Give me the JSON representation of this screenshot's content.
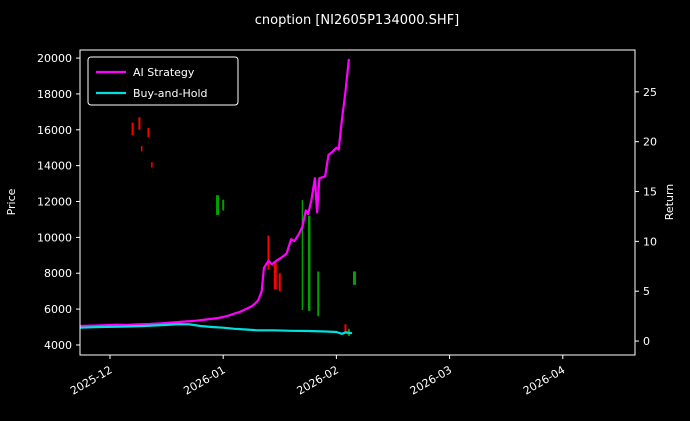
{
  "chart_data": {
    "type": "line",
    "title": "cnoption [NI2605P134000.SHF]",
    "ylabel_left": "Price",
    "ylabel_right": "Return",
    "x_tick_labels": [
      "2025-12",
      "2026-01",
      "2026-02",
      "2026-03",
      "2026-04"
    ],
    "x_tick_positions": [
      0,
      1,
      2,
      3,
      4
    ],
    "xlim": [
      -0.265,
      4.638
    ],
    "ylim_left": [
      3440,
      20450
    ],
    "ylim_right": [
      -1.4,
      29.2
    ],
    "y_ticks_left": [
      4000,
      6000,
      8000,
      10000,
      12000,
      14000,
      16000,
      18000,
      20000
    ],
    "y_ticks_right": [
      0,
      5,
      10,
      15,
      20,
      25
    ],
    "colors": {
      "background": "#000000",
      "foreground": "#ffffff",
      "ai_strategy": "#ff00ff",
      "buy_and_hold": "#00e0e0",
      "candle_up": "#00a000",
      "candle_down": "#ff0000"
    },
    "series": [
      {
        "name": "AI Strategy",
        "color": "#ff00ff",
        "width": 2.2,
        "points": [
          [
            -0.26,
            5060
          ],
          [
            -0.15,
            5080
          ],
          [
            -0.05,
            5100
          ],
          [
            0.05,
            5130
          ],
          [
            0.15,
            5120
          ],
          [
            0.25,
            5150
          ],
          [
            0.35,
            5170
          ],
          [
            0.45,
            5200
          ],
          [
            0.55,
            5250
          ],
          [
            0.65,
            5300
          ],
          [
            0.75,
            5350
          ],
          [
            0.85,
            5420
          ],
          [
            0.95,
            5500
          ],
          [
            1.0,
            5560
          ],
          [
            1.05,
            5650
          ],
          [
            1.1,
            5750
          ],
          [
            1.15,
            5850
          ],
          [
            1.2,
            6000
          ],
          [
            1.25,
            6150
          ],
          [
            1.28,
            6300
          ],
          [
            1.31,
            6500
          ],
          [
            1.34,
            7000
          ],
          [
            1.36,
            8300
          ],
          [
            1.4,
            8700
          ],
          [
            1.43,
            8500
          ],
          [
            1.47,
            8700
          ],
          [
            1.52,
            8900
          ],
          [
            1.56,
            9100
          ],
          [
            1.6,
            9900
          ],
          [
            1.63,
            9800
          ],
          [
            1.67,
            10200
          ],
          [
            1.7,
            10600
          ],
          [
            1.73,
            11500
          ],
          [
            1.75,
            11300
          ],
          [
            1.78,
            12100
          ],
          [
            1.81,
            13300
          ],
          [
            1.83,
            11400
          ],
          [
            1.85,
            13300
          ],
          [
            1.9,
            13400
          ],
          [
            1.93,
            14600
          ],
          [
            1.97,
            14800
          ],
          [
            2.0,
            15000
          ],
          [
            2.02,
            14900
          ],
          [
            2.05,
            16600
          ],
          [
            2.08,
            18100
          ],
          [
            2.11,
            19900
          ]
        ]
      },
      {
        "name": "Buy-and-Hold",
        "color": "#00e0e0",
        "width": 2.2,
        "points": [
          [
            -0.26,
            4960
          ],
          [
            -0.1,
            5000
          ],
          [
            0.1,
            5020
          ],
          [
            0.3,
            5060
          ],
          [
            0.5,
            5120
          ],
          [
            0.6,
            5160
          ],
          [
            0.7,
            5150
          ],
          [
            0.8,
            5060
          ],
          [
            0.9,
            5000
          ],
          [
            1.0,
            4960
          ],
          [
            1.1,
            4900
          ],
          [
            1.2,
            4860
          ],
          [
            1.3,
            4820
          ],
          [
            1.45,
            4820
          ],
          [
            1.6,
            4790
          ],
          [
            1.75,
            4780
          ],
          [
            1.9,
            4750
          ],
          [
            2.0,
            4720
          ],
          [
            2.05,
            4620
          ],
          [
            2.08,
            4700
          ],
          [
            2.13,
            4660
          ]
        ]
      }
    ],
    "candles": [
      {
        "x": 0.2,
        "low": 15700,
        "high": 16400,
        "color": "down",
        "w": 2
      },
      {
        "x": 0.26,
        "low": 16000,
        "high": 16700,
        "color": "down",
        "w": 2
      },
      {
        "x": 0.28,
        "low": 14800,
        "high": 15100,
        "color": "down",
        "w": 1.5
      },
      {
        "x": 0.34,
        "low": 15600,
        "high": 16100,
        "color": "down",
        "w": 2
      },
      {
        "x": 0.37,
        "low": 13900,
        "high": 14200,
        "color": "down",
        "w": 1.5
      },
      {
        "x": 0.95,
        "low": 11250,
        "high": 12350,
        "color": "up",
        "w": 3
      },
      {
        "x": 1.0,
        "low": 11500,
        "high": 12100,
        "color": "up",
        "w": 2
      },
      {
        "x": 1.4,
        "low": 8200,
        "high": 10100,
        "color": "down",
        "w": 2
      },
      {
        "x": 1.46,
        "low": 7100,
        "high": 8600,
        "color": "down",
        "w": 3
      },
      {
        "x": 1.5,
        "low": 7000,
        "high": 8000,
        "color": "down",
        "w": 2
      },
      {
        "x": 1.7,
        "low": 5950,
        "high": 12080,
        "color": "up",
        "w": 1.5
      },
      {
        "x": 1.76,
        "low": 5900,
        "high": 11200,
        "color": "up",
        "w": 2.5
      },
      {
        "x": 1.84,
        "low": 5600,
        "high": 8100,
        "color": "up",
        "w": 2
      },
      {
        "x": 2.08,
        "low": 4650,
        "high": 5150,
        "color": "down",
        "w": 2
      },
      {
        "x": 2.11,
        "low": 4500,
        "high": 4900,
        "color": "up",
        "w": 2
      },
      {
        "x": 2.16,
        "low": 7350,
        "high": 8100,
        "color": "up",
        "w": 3
      }
    ]
  }
}
